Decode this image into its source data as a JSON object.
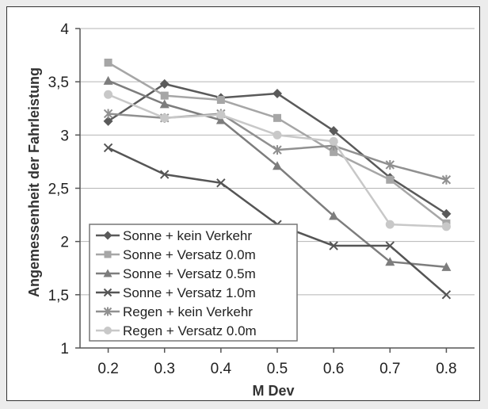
{
  "chart_data": {
    "type": "line",
    "title": "",
    "xlabel": "M Dev",
    "ylabel": "Angemessenheit der Fahrleistung",
    "x": [
      0.2,
      0.3,
      0.4,
      0.5,
      0.6,
      0.7,
      0.8
    ],
    "x_tick_labels": [
      "0.2",
      "0.3",
      "0.4",
      "0.5",
      "0.6",
      "0.7",
      "0.8"
    ],
    "y_tick_labels": [
      "1",
      "1,5",
      "2",
      "2,5",
      "3",
      "3,5",
      "4"
    ],
    "ylim": [
      1,
      4
    ],
    "grid": "horizontal",
    "legend_position": "bottom-left",
    "series": [
      {
        "name": "Sonne + kein Verkehr",
        "marker": "diamond",
        "color": "#5a5a5a",
        "values": [
          3.13,
          3.48,
          3.35,
          3.39,
          3.04,
          2.6,
          2.26
        ]
      },
      {
        "name": "Sonne + Versatz 0.0m",
        "marker": "square",
        "color": "#a6a6a6",
        "values": [
          3.68,
          3.37,
          3.33,
          3.16,
          2.84,
          2.58,
          2.17
        ]
      },
      {
        "name": "Sonne + Versatz 0.5m",
        "marker": "triangle",
        "color": "#7d7d7d",
        "values": [
          3.51,
          3.29,
          3.14,
          2.71,
          2.24,
          1.81,
          1.76
        ]
      },
      {
        "name": "Sonne + Versatz 1.0m",
        "marker": "x",
        "color": "#555555",
        "values": [
          2.88,
          2.63,
          2.55,
          2.16,
          1.96,
          1.96,
          1.5
        ]
      },
      {
        "name": "Regen + kein Verkehr",
        "marker": "star",
        "color": "#909090",
        "values": [
          3.2,
          3.16,
          3.2,
          2.86,
          2.9,
          2.72,
          2.58
        ]
      },
      {
        "name": "Regen + Versatz 0.0m",
        "marker": "circle",
        "color": "#c8c8c8",
        "values": [
          3.38,
          3.16,
          3.19,
          3.0,
          2.94,
          2.16,
          2.14
        ]
      }
    ]
  }
}
